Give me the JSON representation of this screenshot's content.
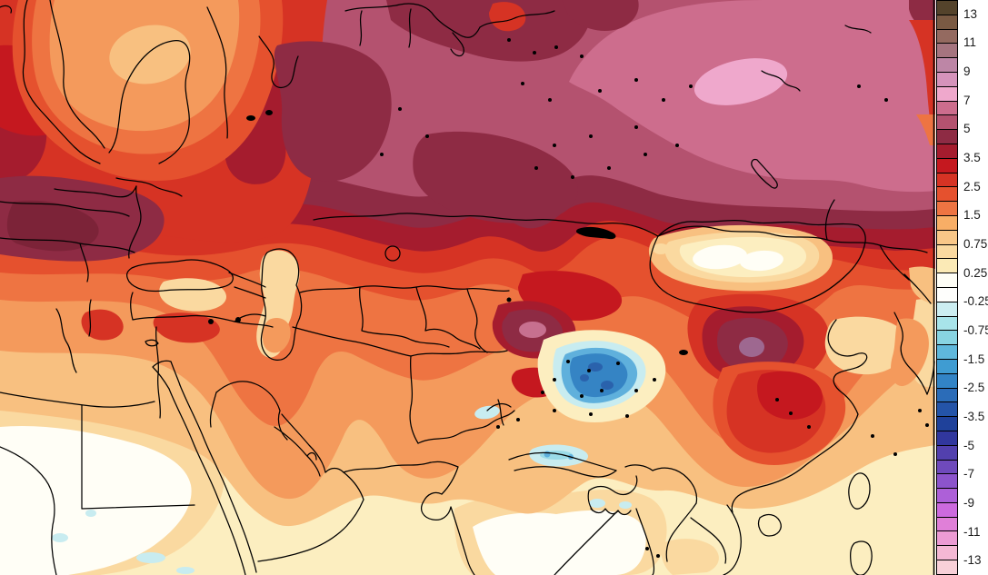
{
  "colorbar": {
    "labels": [
      "13",
      "11",
      "9",
      "7",
      "5",
      "3.5",
      "2.5",
      "1.5",
      "0.75",
      "0.25",
      "-0.25",
      "-0.75",
      "-1.5",
      "-2.5",
      "-3.5",
      "-5",
      "-7",
      "-9",
      "-11",
      "-13"
    ],
    "segment_colors": [
      "#54432b",
      "#7a5a43",
      "#946a60",
      "#a5747f",
      "#bd86a6",
      "#d593bb",
      "#efa8cc",
      "#cd6d8d",
      "#b4526f",
      "#8e2b44",
      "#a51c2e",
      "#c5181f",
      "#d63324",
      "#e5512e",
      "#ee7442",
      "#f8ae66",
      "#f9c788",
      "#fad9a0",
      "#fbeab6",
      "#fefef6",
      "#fefefc",
      "#cceef2",
      "#a8e4ea",
      "#88d4e2",
      "#5fb8dc",
      "#3f9cd2",
      "#3284c6",
      "#2b6cb8",
      "#2454a8",
      "#1f419a",
      "#31379e",
      "#5240ae",
      "#6f4abc",
      "#8c54cc",
      "#ad60d8",
      "#cc6ade",
      "#e07fd8",
      "#ec9bd4",
      "#f4b8d4",
      "#f8d0d8"
    ],
    "label_color": "#1c1c1c",
    "border_color": "#000000"
  },
  "map": {
    "palette": {
      "paleYellow": "#fceec0",
      "white": "#fffef6",
      "cream": "#fad9a0",
      "sandy": "#f8c080",
      "lightOrange": "#f49a5c",
      "orange": "#ee7442",
      "orangeRed": "#e5512e",
      "red": "#d63324",
      "redDeep": "#c5181f",
      "crimson": "#a51c2e",
      "maroon": "#8e2b44",
      "maroonDark": "#7c2338",
      "mauve": "#b4526f",
      "rose": "#cd6d8d",
      "palePink": "#efa8cc",
      "pinkCore": "#c7708f",
      "purpleCore": "#9e6890",
      "paleCyan": "#c8ecf0",
      "cyan": "#9adbe8",
      "skyBlue": "#5fb0dc",
      "blue": "#3584c4",
      "deepBlue": "#2a62ac",
      "border": "#000000"
    }
  }
}
